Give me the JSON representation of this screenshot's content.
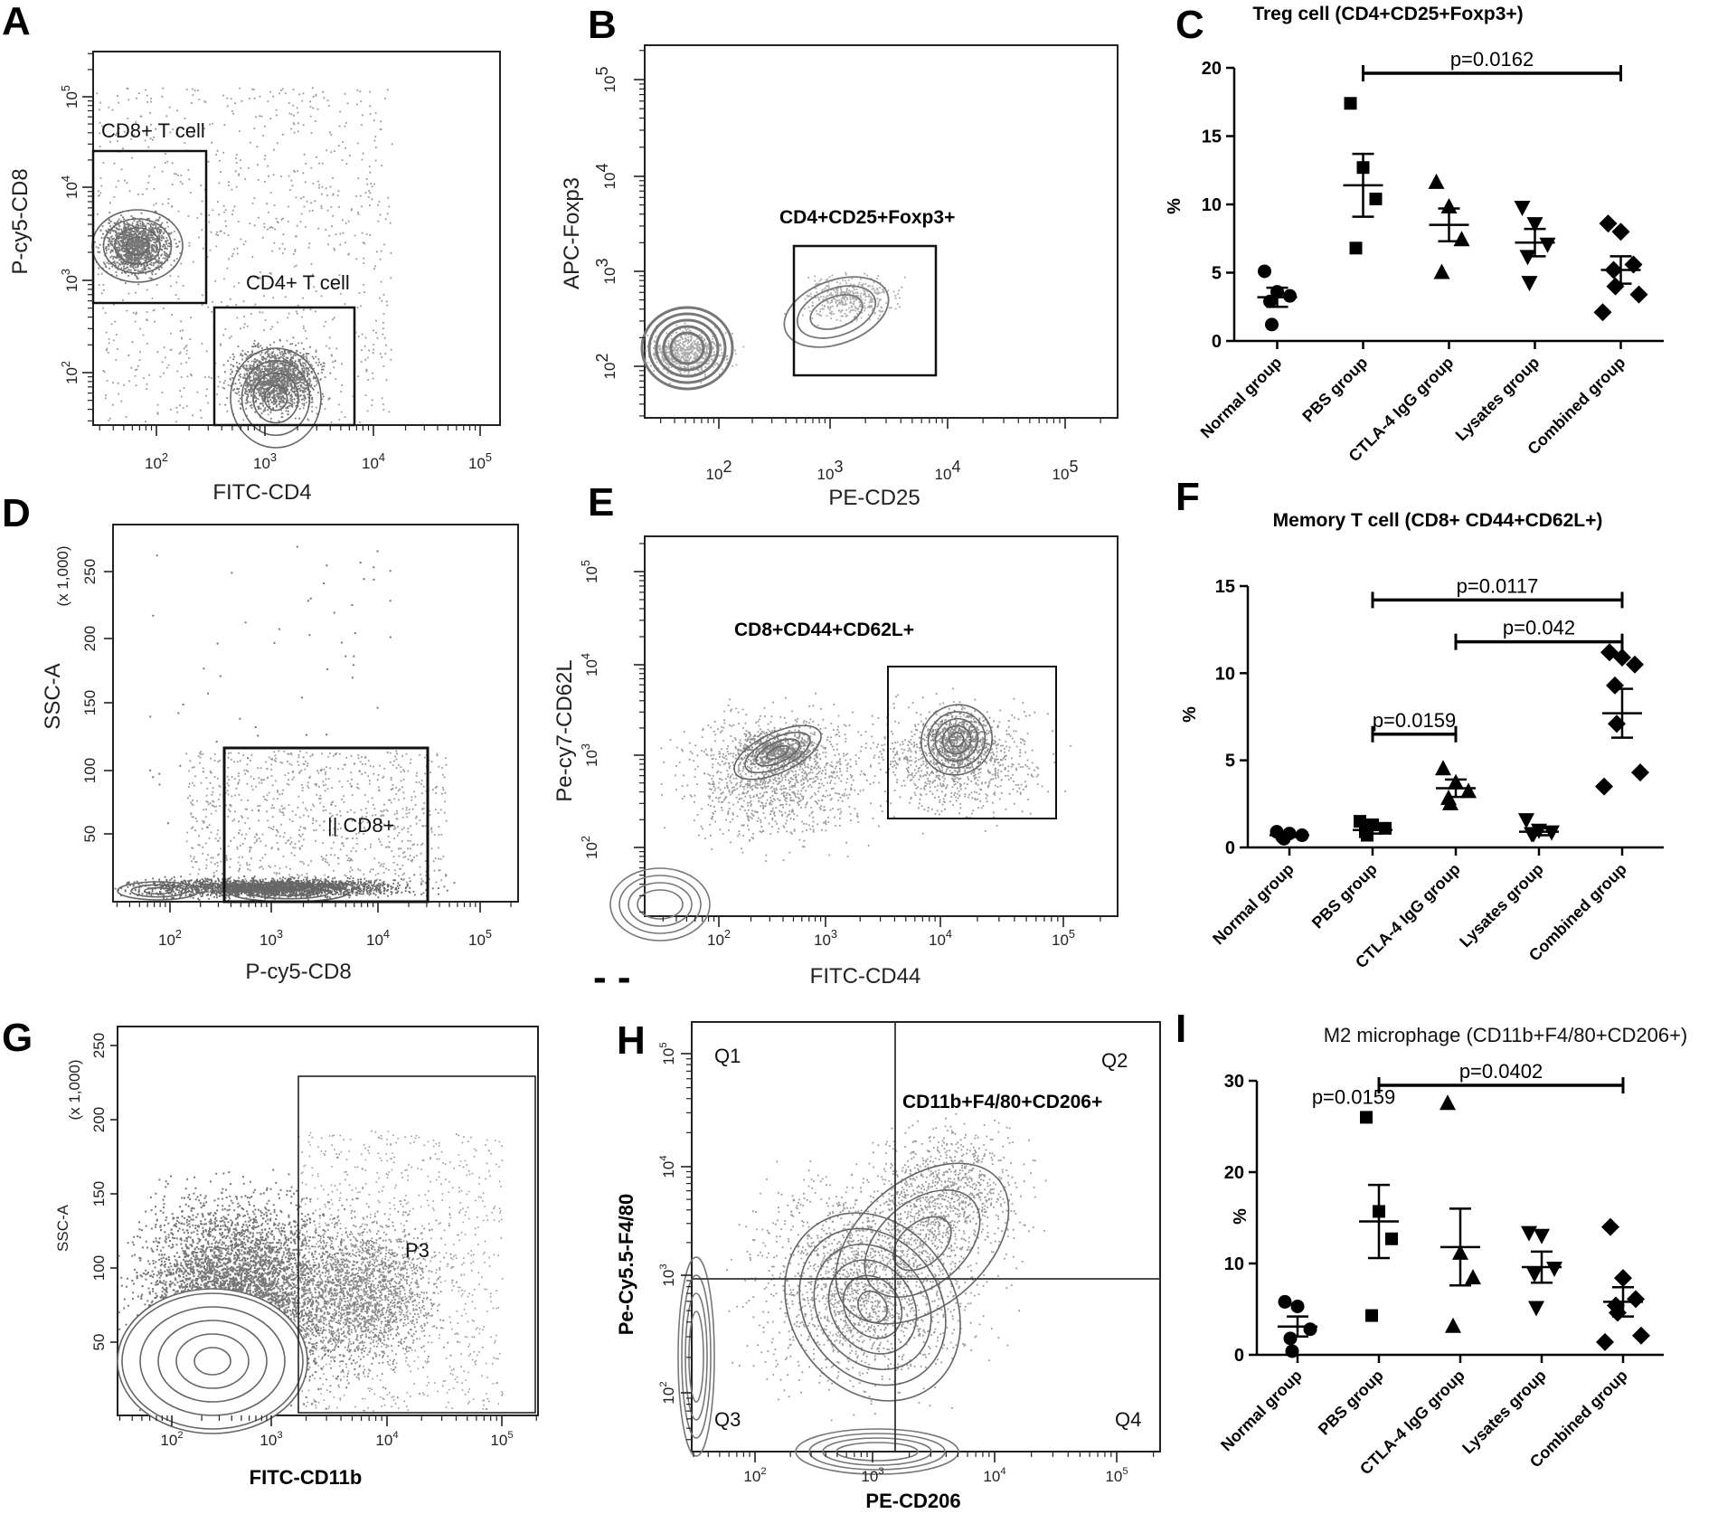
{
  "panels": {
    "A": {
      "label": "A",
      "xlabel": "FITC-CD4",
      "ylabel": "P-cy5-CD8",
      "gates": [
        "CD8+ T cell",
        "CD4+ T cell"
      ],
      "xticks": [
        "10",
        "10",
        "10",
        "10"
      ],
      "xexp": [
        "2",
        "3",
        "4",
        "5"
      ],
      "yticks": [
        "10",
        "10",
        "10",
        "10"
      ],
      "yexp": [
        "2",
        "3",
        "4",
        "5"
      ]
    },
    "B": {
      "label": "B",
      "xlabel": "PE-CD25",
      "ylabel": "APC-Foxp3",
      "gates": [
        "CD4+CD25+Foxp3+"
      ],
      "xticks": [
        "10",
        "10",
        "10",
        "10"
      ],
      "xexp": [
        "2",
        "3",
        "4",
        "5"
      ],
      "yticks": [
        "10",
        "10",
        "10",
        "10"
      ],
      "yexp": [
        "2",
        "3",
        "4",
        "5"
      ]
    },
    "D": {
      "label": "D",
      "xlabel": "P-cy5-CD8",
      "ylabel": "SSC-A",
      "yunit": "(x 1,000)",
      "gates": [
        "CD8+"
      ],
      "xticks": [
        "10",
        "10",
        "10",
        "10"
      ],
      "xexp": [
        "2",
        "3",
        "4",
        "5"
      ],
      "yticks": [
        "50",
        "100",
        "150",
        "200",
        "250"
      ]
    },
    "E": {
      "label": "E",
      "xlabel": "FITC-CD44",
      "ylabel": "Pe-cy7-CD62L",
      "gates": [
        "CD8+CD44+CD62L+"
      ],
      "xticks": [
        "10",
        "10",
        "10",
        "10"
      ],
      "xexp": [
        "2",
        "3",
        "4",
        "5"
      ],
      "yticks": [
        "10",
        "10",
        "10",
        "10"
      ],
      "yexp": [
        "2",
        "3",
        "4",
        "5"
      ]
    },
    "G": {
      "label": "G",
      "xlabel": "FITC-CD11b",
      "ylabel": "SSC-A",
      "yunit": "(x 1,000)",
      "gates": [
        "P3"
      ],
      "xticks": [
        "10",
        "10",
        "10",
        "10"
      ],
      "xexp": [
        "2",
        "3",
        "4",
        "5"
      ],
      "yticks": [
        "50",
        "100",
        "150",
        "200",
        "250"
      ]
    },
    "H": {
      "label": "H",
      "xlabel": "PE-CD206",
      "ylabel": "Pe-Cy5.5-F4/80",
      "gates": [
        "CD11b+F4/80+CD206+"
      ],
      "quadrants": [
        "Q1",
        "Q2",
        "Q3",
        "Q4"
      ],
      "xticks": [
        "10",
        "10",
        "10",
        "10"
      ],
      "xexp": [
        "2",
        "3",
        "4",
        "5"
      ],
      "yticks": [
        "10",
        "10",
        "10",
        "10"
      ],
      "yexp": [
        "2",
        "3",
        "4",
        "5"
      ]
    }
  },
  "chart_data": [
    {
      "panel": "C",
      "type": "scatter",
      "title": "Treg cell (CD4+CD25+Foxp3+)",
      "ylabel": "%",
      "ylim": [
        0,
        20
      ],
      "yticks": [
        0,
        5,
        10,
        15,
        20
      ],
      "categories": [
        "Normal group",
        "PBS group",
        "CTLA-4 IgG group",
        "Lysates group",
        "Combined group"
      ],
      "markers": [
        "circle",
        "square",
        "triangle-up",
        "triangle-down",
        "diamond"
      ],
      "points": [
        [
          5.1,
          3.6,
          3.3,
          2.9,
          1.2
        ],
        [
          17.4,
          12.7,
          10.4,
          6.8
        ],
        [
          11.6,
          9.8,
          7.4,
          5.0
        ],
        [
          9.8,
          8.6,
          7.1,
          6.2,
          4.3
        ],
        [
          8.6,
          8.0,
          5.6,
          5.2,
          4.0,
          3.4,
          2.1
        ]
      ],
      "means": [
        3.2,
        11.4,
        8.5,
        7.2,
        5.2
      ],
      "sems": [
        0.7,
        2.3,
        1.2,
        1.0,
        1.0
      ],
      "comparisons": [
        {
          "from": 1,
          "to": 4,
          "label": "p=0.0162",
          "y": 19.6
        }
      ]
    },
    {
      "panel": "F",
      "type": "scatter",
      "title": "Memory T cell (CD8+ CD44+CD62L+)",
      "ylabel": "%",
      "ylim": [
        0,
        15
      ],
      "yticks": [
        0,
        5,
        10,
        15
      ],
      "categories": [
        "Normal group",
        "PBS group",
        "CTLA-4 IgG group",
        "Lysates group",
        "Combined group"
      ],
      "markers": [
        "circle",
        "square",
        "triangle-up",
        "triangle-down",
        "diamond"
      ],
      "points": [
        [
          0.9,
          0.8,
          0.7,
          0.6,
          0.5
        ],
        [
          1.5,
          1.3,
          1.1,
          0.9,
          0.7
        ],
        [
          4.5,
          3.7,
          3.2,
          2.8,
          2.5
        ],
        [
          1.6,
          1.0,
          0.9,
          0.8,
          0.8
        ],
        [
          11.2,
          10.9,
          10.5,
          9.3,
          7.1,
          4.3,
          3.5
        ]
      ],
      "means": [
        0.7,
        1.0,
        3.4,
        0.9,
        7.7
      ],
      "sems": [
        0.1,
        0.2,
        0.5,
        0.2,
        1.4
      ],
      "comparisons": [
        {
          "from": 1,
          "to": 4,
          "label": "p=0.0117",
          "y": 14.2
        },
        {
          "from": 2,
          "to": 4,
          "label": "p=0.042",
          "y": 11.8
        },
        {
          "from": 1,
          "to": 2,
          "label": "p=0.0159",
          "y": 6.5
        }
      ]
    },
    {
      "panel": "I",
      "type": "scatter",
      "title": "M2 microphage (CD11b+F4/80+CD206+)",
      "ylabel": "%",
      "ylim": [
        0,
        30
      ],
      "yticks": [
        0,
        10,
        20,
        30
      ],
      "categories": [
        "Normal group",
        "PBS group",
        "CTLA-4 IgG group",
        "Lysates group",
        "Combined group"
      ],
      "markers": [
        "circle",
        "square",
        "triangle-up",
        "triangle-down",
        "diamond"
      ],
      "points": [
        [
          5.8,
          5.3,
          2.8,
          1.8,
          0.4
        ],
        [
          26.0,
          15.7,
          12.7,
          4.3
        ],
        [
          27.5,
          11.1,
          8.4,
          3.1
        ],
        [
          13.4,
          13.1,
          9.5,
          8.9,
          5.2
        ],
        [
          14.0,
          8.4,
          6.1,
          5.4,
          4.6,
          2.1,
          1.4
        ]
      ],
      "means": [
        3.1,
        14.6,
        11.8,
        9.6,
        5.8
      ],
      "sems": [
        1.1,
        4.0,
        4.2,
        1.7,
        1.6
      ],
      "comparisons": [
        {
          "from": 1,
          "to": 4,
          "label": "p=0.0402",
          "y": 29.5
        }
      ],
      "annotations": [
        "p=0.0159"
      ]
    }
  ]
}
